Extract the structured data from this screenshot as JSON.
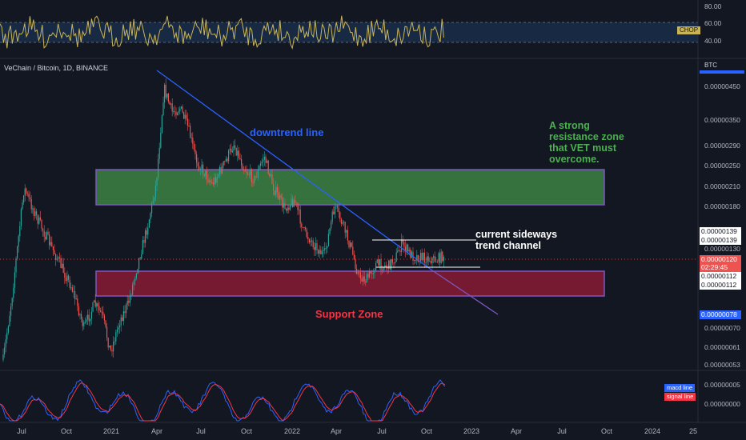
{
  "symbol_title": "VeChain / Bitcoin, 1D, BINANCE",
  "currency_label": "BTC",
  "chop": {
    "label": "CHOP",
    "axis": [
      "80.00",
      "60.00",
      "40.00"
    ]
  },
  "price_axis": [
    "0.00000450",
    "0.00000350",
    "0.00000290",
    "0.00000250",
    "0.00000210",
    "0.00000180",
    "0.00000130",
    "0.00000070",
    "0.00000061",
    "0.00000053"
  ],
  "price_tags": {
    "tag_139_a": "0.00000139",
    "tag_139_b": "0.00000139",
    "current_price": "0.00000120",
    "countdown": "02:29:45",
    "tag_112_a": "0.00000112",
    "tag_112_b": "0.00000112",
    "tag_078": "0.00000078"
  },
  "macd": {
    "axis": [
      "0.00000005",
      "0.00000000"
    ],
    "legend_macd": "macd line",
    "legend_signal": "signal line"
  },
  "time_axis": [
    "Jul",
    "Oct",
    "2021",
    "Apr",
    "Jul",
    "Oct",
    "2022",
    "Apr",
    "Jul",
    "Oct",
    "2023",
    "Apr",
    "Jul",
    "Oct",
    "2024",
    "25"
  ],
  "annotations": {
    "downtrend": "downtrend line",
    "resistance": "A strong\nresistance zone\nthat VET must\novercome.",
    "sideways": "current sideways\ntrend channel",
    "support": "Support Zone"
  },
  "colors": {
    "background": "#131722",
    "bull": "#26a69a",
    "bear": "#ef5350",
    "resistance_zone": "#4caf50",
    "support_zone": "#b71c3c",
    "zone_border": "#7e57c2",
    "trendline": "#2962ff",
    "chop_line": "#c9b458",
    "macd_line": "#2962ff",
    "signal_line": "#f23645",
    "resistance_text": "#4caf50",
    "support_text": "#f23645",
    "downtrend_text": "#2962ff"
  }
}
